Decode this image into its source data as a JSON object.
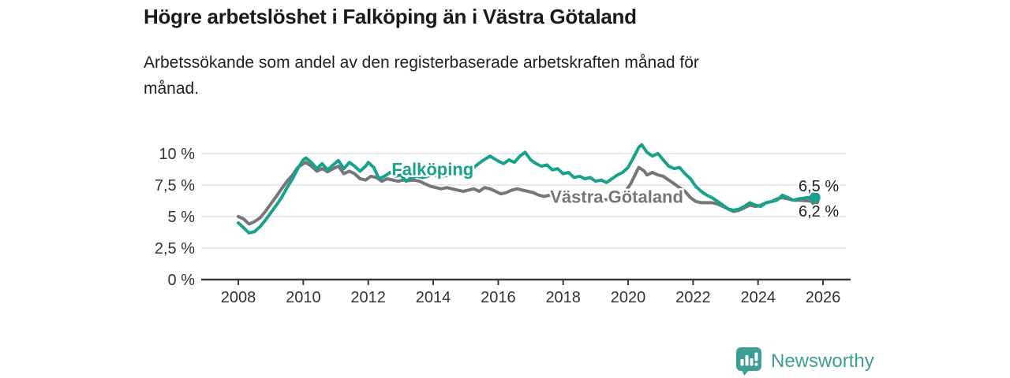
{
  "chart_data": {
    "type": "line",
    "title": "Högre arbetslöshet i Falköping än i Västra Götaland",
    "subtitle_line1": "Arbetssökande som andel av den registerbaserade arbetskraften månad för",
    "subtitle_line2": "månad.",
    "xlabel": "",
    "ylabel": "",
    "unit": "%",
    "grid": true,
    "legend_position": "inline-labels",
    "xlim": [
      2006.9,
      2026.9
    ],
    "ylim": [
      0,
      11
    ],
    "x_tick_values": [
      2008,
      2010,
      2012,
      2014,
      2016,
      2018,
      2020,
      2022,
      2024,
      2026
    ],
    "x_tick_labels": [
      "2008",
      "2010",
      "2012",
      "2014",
      "2016",
      "2018",
      "2020",
      "2022",
      "2024",
      "2026"
    ],
    "y_tick_values": [
      0,
      2.5,
      5,
      7.5,
      10
    ],
    "y_tick_labels": [
      "0 %",
      "2,5 %",
      "5 %",
      "7,5 %",
      "10 %"
    ],
    "series": [
      {
        "name": "Västra Götaland",
        "color": "#76767a",
        "end_label": "6,2 %",
        "end_value": 6.2,
        "points": [
          [
            2008.0,
            5.0
          ],
          [
            2008.17,
            4.8
          ],
          [
            2008.33,
            4.4
          ],
          [
            2008.5,
            4.6
          ],
          [
            2008.67,
            4.9
          ],
          [
            2008.83,
            5.4
          ],
          [
            2009.0,
            6.0
          ],
          [
            2009.17,
            6.6
          ],
          [
            2009.33,
            7.2
          ],
          [
            2009.5,
            7.8
          ],
          [
            2009.67,
            8.3
          ],
          [
            2009.83,
            8.9
          ],
          [
            2010.0,
            9.2
          ],
          [
            2010.08,
            9.3
          ],
          [
            2010.25,
            9.0
          ],
          [
            2010.42,
            8.6
          ],
          [
            2010.58,
            8.8
          ],
          [
            2010.75,
            8.55
          ],
          [
            2010.92,
            8.8
          ],
          [
            2011.08,
            9.0
          ],
          [
            2011.25,
            8.4
          ],
          [
            2011.42,
            8.6
          ],
          [
            2011.58,
            8.4
          ],
          [
            2011.75,
            8.0
          ],
          [
            2011.92,
            7.9
          ],
          [
            2012.08,
            8.2
          ],
          [
            2012.25,
            8.1
          ],
          [
            2012.42,
            7.8
          ],
          [
            2012.58,
            8.0
          ],
          [
            2012.75,
            7.9
          ],
          [
            2012.92,
            7.8
          ],
          [
            2013.08,
            7.9
          ],
          [
            2013.25,
            7.85
          ],
          [
            2013.42,
            7.9
          ],
          [
            2013.58,
            7.8
          ],
          [
            2013.75,
            7.6
          ],
          [
            2013.92,
            7.4
          ],
          [
            2014.08,
            7.3
          ],
          [
            2014.25,
            7.2
          ],
          [
            2014.42,
            7.3
          ],
          [
            2014.58,
            7.2
          ],
          [
            2014.75,
            7.1
          ],
          [
            2014.92,
            7.0
          ],
          [
            2015.08,
            7.1
          ],
          [
            2015.25,
            7.2
          ],
          [
            2015.42,
            7.0
          ],
          [
            2015.58,
            7.3
          ],
          [
            2015.75,
            7.2
          ],
          [
            2015.92,
            7.0
          ],
          [
            2016.08,
            6.8
          ],
          [
            2016.25,
            6.9
          ],
          [
            2016.42,
            7.1
          ],
          [
            2016.58,
            7.2
          ],
          [
            2016.75,
            7.1
          ],
          [
            2016.92,
            7.0
          ],
          [
            2017.08,
            6.9
          ],
          [
            2017.25,
            6.7
          ],
          [
            2017.42,
            6.6
          ],
          [
            2017.58,
            6.7
          ],
          [
            2017.75,
            6.6
          ],
          [
            2017.92,
            6.5
          ],
          [
            2018.08,
            6.6
          ],
          [
            2018.25,
            6.5
          ],
          [
            2018.42,
            6.4
          ],
          [
            2018.58,
            6.5
          ],
          [
            2018.75,
            6.4
          ],
          [
            2018.92,
            6.3
          ],
          [
            2019.08,
            6.4
          ],
          [
            2019.25,
            6.3
          ],
          [
            2019.42,
            6.4
          ],
          [
            2019.58,
            6.5
          ],
          [
            2019.75,
            6.7
          ],
          [
            2019.92,
            7.0
          ],
          [
            2020.08,
            7.6
          ],
          [
            2020.25,
            8.5
          ],
          [
            2020.33,
            8.9
          ],
          [
            2020.5,
            8.6
          ],
          [
            2020.58,
            8.3
          ],
          [
            2020.75,
            8.5
          ],
          [
            2020.92,
            8.3
          ],
          [
            2021.08,
            8.2
          ],
          [
            2021.25,
            7.9
          ],
          [
            2021.42,
            7.6
          ],
          [
            2021.58,
            7.3
          ],
          [
            2021.75,
            7.0
          ],
          [
            2021.92,
            6.5
          ],
          [
            2022.08,
            6.2
          ],
          [
            2022.25,
            6.1
          ],
          [
            2022.42,
            6.1
          ],
          [
            2022.58,
            6.1
          ],
          [
            2022.75,
            6.0
          ],
          [
            2022.92,
            5.8
          ],
          [
            2023.08,
            5.6
          ],
          [
            2023.25,
            5.4
          ],
          [
            2023.42,
            5.5
          ],
          [
            2023.58,
            5.7
          ],
          [
            2023.75,
            5.9
          ],
          [
            2023.92,
            5.8
          ],
          [
            2024.08,
            5.9
          ],
          [
            2024.25,
            6.1
          ],
          [
            2024.42,
            6.2
          ],
          [
            2024.58,
            6.4
          ],
          [
            2024.75,
            6.5
          ],
          [
            2024.92,
            6.4
          ],
          [
            2025.08,
            6.3
          ],
          [
            2025.25,
            6.3
          ],
          [
            2025.5,
            6.25
          ],
          [
            2025.75,
            6.2
          ]
        ]
      },
      {
        "name": "Falköping",
        "color": "#18a28c",
        "end_label": "6,5 %",
        "end_value": 6.5,
        "points": [
          [
            2008.0,
            4.5
          ],
          [
            2008.17,
            4.1
          ],
          [
            2008.33,
            3.7
          ],
          [
            2008.5,
            3.8
          ],
          [
            2008.67,
            4.2
          ],
          [
            2008.83,
            4.7
          ],
          [
            2009.0,
            5.3
          ],
          [
            2009.17,
            5.9
          ],
          [
            2009.33,
            6.5
          ],
          [
            2009.5,
            7.3
          ],
          [
            2009.67,
            8.0
          ],
          [
            2009.83,
            8.8
          ],
          [
            2010.0,
            9.5
          ],
          [
            2010.08,
            9.65
          ],
          [
            2010.25,
            9.3
          ],
          [
            2010.42,
            8.8
          ],
          [
            2010.58,
            9.2
          ],
          [
            2010.75,
            8.7
          ],
          [
            2010.92,
            9.1
          ],
          [
            2011.08,
            9.45
          ],
          [
            2011.25,
            8.8
          ],
          [
            2011.42,
            9.3
          ],
          [
            2011.58,
            9.0
          ],
          [
            2011.75,
            8.6
          ],
          [
            2011.92,
            9.0
          ],
          [
            2012.0,
            9.3
          ],
          [
            2012.17,
            8.9
          ],
          [
            2012.33,
            8.0
          ],
          [
            2012.5,
            8.2
          ],
          [
            2012.67,
            8.5
          ],
          [
            2012.83,
            8.2
          ],
          [
            2013.0,
            8.3
          ],
          [
            2013.17,
            7.8
          ],
          [
            2013.33,
            8.1
          ],
          [
            2013.5,
            8.2
          ],
          [
            2013.67,
            8.1
          ],
          [
            2013.83,
            8.2
          ],
          [
            2014.0,
            8.3
          ],
          [
            2014.25,
            8.2
          ],
          [
            2014.5,
            8.3
          ],
          [
            2014.75,
            8.4
          ],
          [
            2015.0,
            8.6
          ],
          [
            2015.25,
            8.9
          ],
          [
            2015.5,
            9.4
          ],
          [
            2015.75,
            9.8
          ],
          [
            2016.0,
            9.4
          ],
          [
            2016.17,
            9.2
          ],
          [
            2016.33,
            9.5
          ],
          [
            2016.5,
            9.3
          ],
          [
            2016.67,
            9.8
          ],
          [
            2016.83,
            10.1
          ],
          [
            2017.0,
            9.5
          ],
          [
            2017.17,
            9.2
          ],
          [
            2017.33,
            9.0
          ],
          [
            2017.5,
            9.1
          ],
          [
            2017.67,
            8.7
          ],
          [
            2017.83,
            8.8
          ],
          [
            2018.0,
            8.4
          ],
          [
            2018.17,
            8.5
          ],
          [
            2018.33,
            8.1
          ],
          [
            2018.5,
            8.2
          ],
          [
            2018.67,
            8.0
          ],
          [
            2018.83,
            8.1
          ],
          [
            2019.0,
            7.8
          ],
          [
            2019.17,
            7.9
          ],
          [
            2019.33,
            7.7
          ],
          [
            2019.5,
            8.0
          ],
          [
            2019.67,
            8.3
          ],
          [
            2019.83,
            8.5
          ],
          [
            2020.0,
            8.9
          ],
          [
            2020.17,
            9.7
          ],
          [
            2020.33,
            10.5
          ],
          [
            2020.42,
            10.7
          ],
          [
            2020.58,
            10.1
          ],
          [
            2020.75,
            9.8
          ],
          [
            2020.92,
            10.0
          ],
          [
            2021.08,
            9.5
          ],
          [
            2021.25,
            9.0
          ],
          [
            2021.42,
            8.8
          ],
          [
            2021.58,
            8.9
          ],
          [
            2021.75,
            8.4
          ],
          [
            2021.92,
            8.0
          ],
          [
            2022.08,
            7.4
          ],
          [
            2022.25,
            7.0
          ],
          [
            2022.42,
            6.7
          ],
          [
            2022.58,
            6.5
          ],
          [
            2022.75,
            6.2
          ],
          [
            2022.92,
            5.9
          ],
          [
            2023.08,
            5.6
          ],
          [
            2023.25,
            5.5
          ],
          [
            2023.42,
            5.6
          ],
          [
            2023.58,
            5.8
          ],
          [
            2023.75,
            6.1
          ],
          [
            2023.92,
            5.9
          ],
          [
            2024.08,
            5.8
          ],
          [
            2024.25,
            6.1
          ],
          [
            2024.42,
            6.2
          ],
          [
            2024.58,
            6.3
          ],
          [
            2024.75,
            6.7
          ],
          [
            2024.92,
            6.5
          ],
          [
            2025.08,
            6.3
          ],
          [
            2025.25,
            6.4
          ],
          [
            2025.5,
            6.5
          ],
          [
            2025.75,
            6.5
          ]
        ]
      }
    ]
  },
  "footer": {
    "brand": "Newsworthy"
  },
  "colors": {
    "accent_teal": "#18a28c",
    "series_gray": "#76767a",
    "logo_teal": "#3d9e96",
    "grid": "#dcdcdc",
    "axis": "#3a3a3a",
    "tick_text": "#333333",
    "title_text": "#1a1a1a"
  }
}
